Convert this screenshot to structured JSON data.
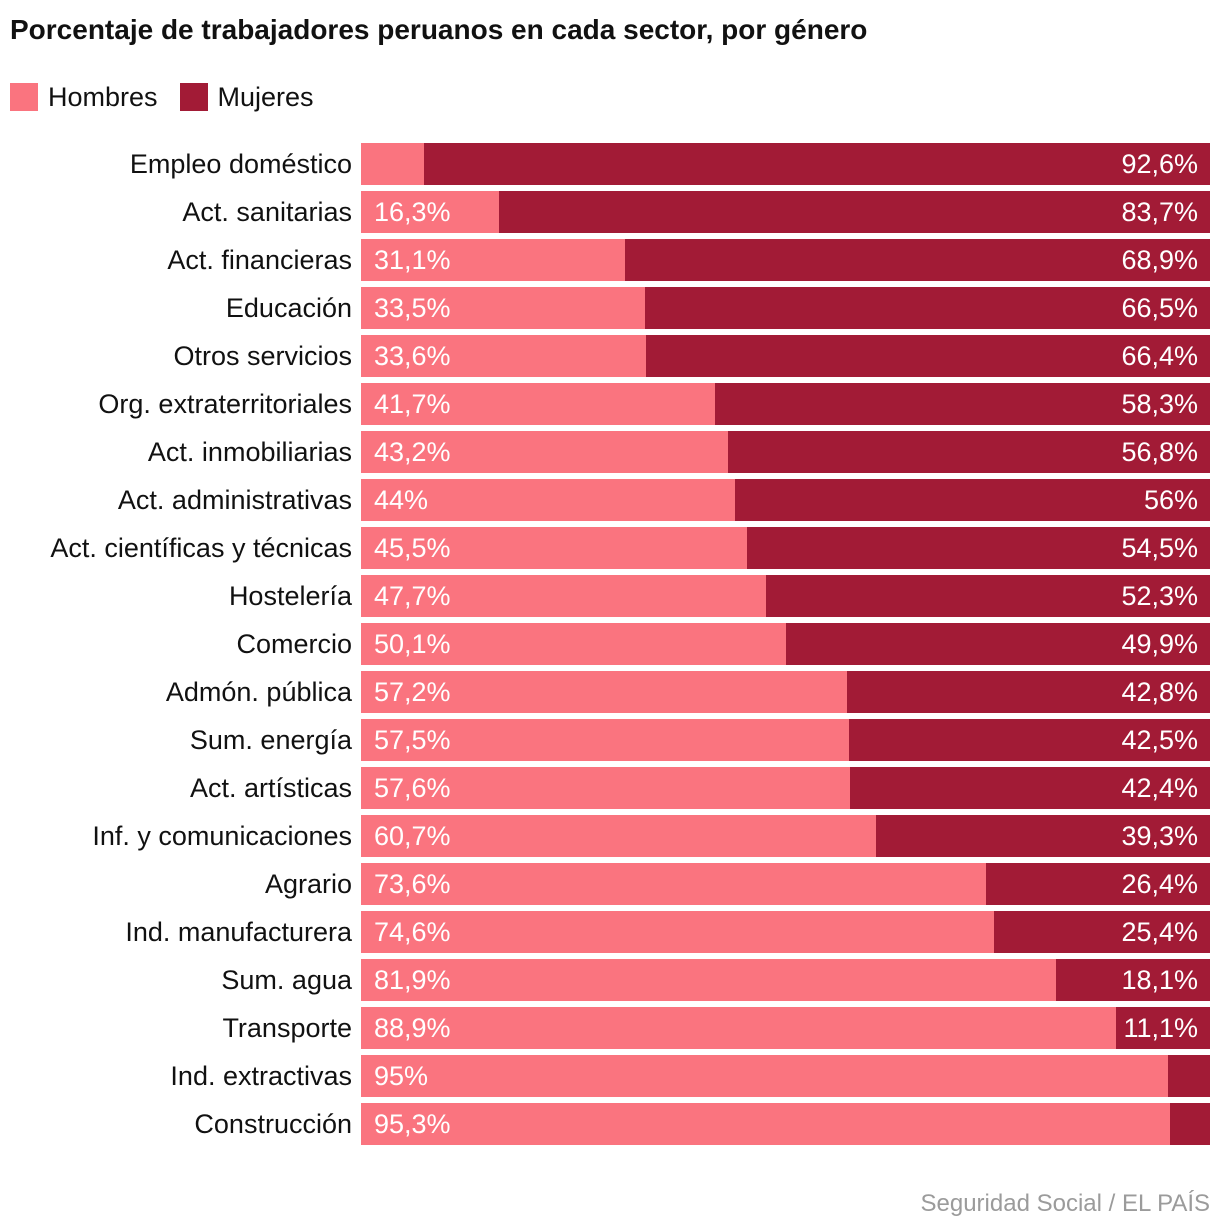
{
  "title": "Porcentaje de trabajadores peruanos en cada sector, por género",
  "legend": {
    "hombres": "Hombres",
    "mujeres": "Mujeres"
  },
  "source": "Seguridad Social / EL PAÍS",
  "colors": {
    "hombres": "#FA747F",
    "mujeres": "#A21B36",
    "label": "#111111",
    "value_text": "#FFFFFF",
    "source_text": "#9B9B9B"
  },
  "chart_data": {
    "type": "bar",
    "orientation": "horizontal",
    "stacked": true,
    "unit": "%",
    "xlim": [
      0,
      100
    ],
    "grid": false,
    "legend_position": "top-left",
    "title": "Porcentaje de trabajadores peruanos en cada sector, por género",
    "categories": [
      "Empleo doméstico",
      "Act. sanitarias",
      "Act. financieras",
      "Educación",
      "Otros servicios",
      "Org. extraterritoriales",
      "Act. inmobiliarias",
      "Act. administrativas",
      "Act. científicas y técnicas",
      "Hostelería",
      "Comercio",
      "Admón. pública",
      "Sum. energía",
      "Act. artísticas",
      "Inf. y comunicaciones",
      "Agrario",
      "Ind. manufacturera",
      "Sum. agua",
      "Transporte",
      "Ind. extractivas",
      "Construcción"
    ],
    "series": [
      {
        "name": "Hombres",
        "values": [
          7.4,
          16.3,
          31.1,
          33.5,
          33.6,
          41.7,
          43.2,
          44,
          45.5,
          47.7,
          50.1,
          57.2,
          57.5,
          57.6,
          60.7,
          73.6,
          74.6,
          81.9,
          88.9,
          95,
          95.3
        ],
        "labels": [
          "",
          "16,3%",
          "31,1%",
          "33,5%",
          "33,6%",
          "41,7%",
          "43,2%",
          "44%",
          "45,5%",
          "47,7%",
          "50,1%",
          "57,2%",
          "57,5%",
          "57,6%",
          "60,7%",
          "73,6%",
          "74,6%",
          "81,9%",
          "88,9%",
          "95%",
          "95,3%"
        ]
      },
      {
        "name": "Mujeres",
        "values": [
          92.6,
          83.7,
          68.9,
          66.5,
          66.4,
          58.3,
          56.8,
          56,
          54.5,
          52.3,
          49.9,
          42.8,
          42.5,
          42.4,
          39.3,
          26.4,
          25.4,
          18.1,
          11.1,
          5,
          4.7
        ],
        "labels": [
          "92,6%",
          "83,7%",
          "68,9%",
          "66,5%",
          "66,4%",
          "58,3%",
          "56,8%",
          "56%",
          "54,5%",
          "52,3%",
          "49,9%",
          "42,8%",
          "42,5%",
          "42,4%",
          "39,3%",
          "26,4%",
          "25,4%",
          "18,1%",
          "11,1%",
          "",
          ""
        ]
      }
    ]
  }
}
